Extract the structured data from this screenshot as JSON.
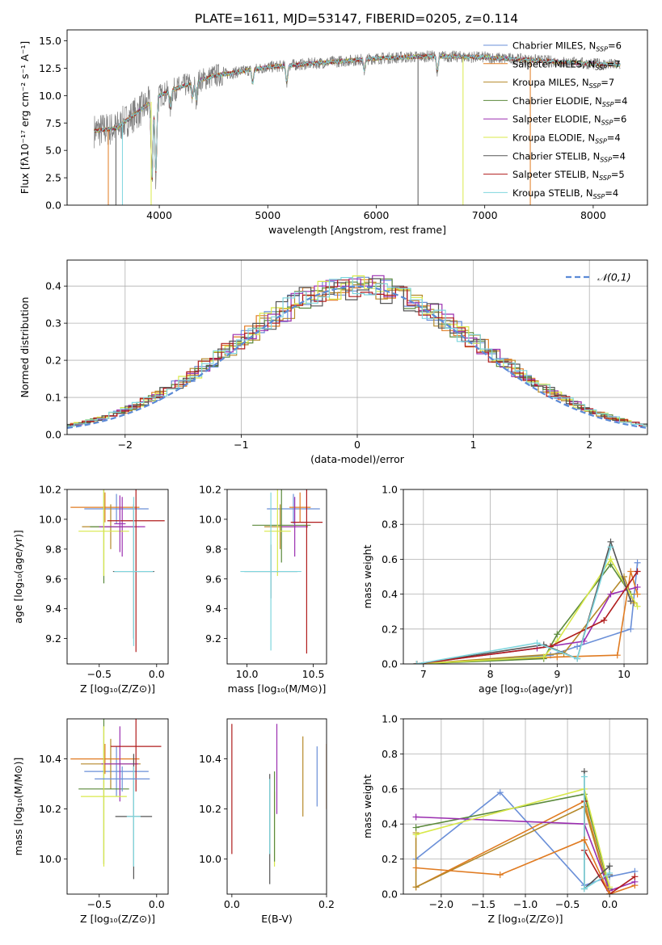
{
  "figure": {
    "title": "PLATE=1611, MJD=53147, FIBERID=0205, z=0.114",
    "series_colors": {
      "Chabrier MILES": "#6a8fd8",
      "Salpeter MILES": "#e07b21",
      "Kroupa MILES": "#b5892a",
      "Chabrier ELODIE": "#5b8a3c",
      "Salpeter ELODIE": "#9b2fb0",
      "Kroupa ELODIE": "#d8e84a",
      "Chabrier STELIB": "#555555",
      "Salpeter STELIB": "#b01c1c",
      "Kroupa STELIB": "#7fd6de"
    }
  },
  "chart_data": [
    {
      "id": "spectrum",
      "type": "line",
      "xlabel": "wavelength [Angstrom, rest frame]",
      "ylabel": "Flux [fλ10⁻¹⁷ erg cm⁻² s⁻¹ A⁻¹]",
      "xlim": [
        3150,
        8500
      ],
      "ylim": [
        0,
        16
      ],
      "xticks": [
        4000,
        5000,
        6000,
        7000,
        8000
      ],
      "yticks": [
        0.0,
        2.5,
        5.0,
        7.5,
        10.0,
        12.5,
        15.0
      ],
      "legend_position": "top-right",
      "legend": [
        {
          "label": "Chabrier MILES, N",
          "sub": "SSP",
          "tail": "=6"
        },
        {
          "label": "Salpeter MILES, N",
          "sub": "SSP",
          "tail": "=7"
        },
        {
          "label": "Kroupa MILES, N",
          "sub": "SSP",
          "tail": "=7"
        },
        {
          "label": "Chabrier ELODIE, N",
          "sub": "SSP",
          "tail": "=4"
        },
        {
          "label": "Salpeter ELODIE, N",
          "sub": "SSP",
          "tail": "=6"
        },
        {
          "label": "Kroupa ELODIE, N",
          "sub": "SSP",
          "tail": "=4"
        },
        {
          "label": "Chabrier STELIB, N",
          "sub": "SSP",
          "tail": "=4"
        },
        {
          "label": "Salpeter STELIB, N",
          "sub": "SSP",
          "tail": "=5"
        },
        {
          "label": "Kroupa STELIB, N",
          "sub": "SSP",
          "tail": "=4"
        }
      ],
      "data_range": [
        3400,
        8250
      ],
      "continuum": [
        [
          3400,
          6.8
        ],
        [
          3600,
          7.0
        ],
        [
          3800,
          8.5
        ],
        [
          4000,
          10.0
        ],
        [
          4200,
          10.8
        ],
        [
          4500,
          11.8
        ],
        [
          5000,
          12.6
        ],
        [
          5500,
          13.0
        ],
        [
          6000,
          13.4
        ],
        [
          6500,
          13.6
        ],
        [
          7000,
          13.5
        ],
        [
          7500,
          13.2
        ],
        [
          8000,
          12.9
        ],
        [
          8250,
          12.8
        ]
      ],
      "absorption": [
        [
          3933,
          0.25
        ],
        [
          3968,
          0.3
        ],
        [
          4102,
          0.85
        ],
        [
          4304,
          0.88
        ],
        [
          4340,
          0.85
        ],
        [
          4861,
          0.9
        ],
        [
          5175,
          0.88
        ],
        [
          5890,
          0.92
        ],
        [
          6563,
          0.9
        ]
      ],
      "drops": [
        {
          "x": 3530,
          "color": "Salpeter MILES"
        },
        {
          "x": 3600,
          "color": "Chabrier STELIB"
        },
        {
          "x": 3660,
          "color": "Kroupa STELIB"
        },
        {
          "x": 3925,
          "color": "Kroupa ELODIE"
        },
        {
          "x": 6385,
          "color": "Chabrier STELIB"
        },
        {
          "x": 6800,
          "color": "Kroupa ELODIE"
        },
        {
          "x": 7420,
          "color": "Salpeter MILES"
        }
      ]
    },
    {
      "id": "residuals",
      "type": "histogram",
      "xlabel": "(data-model)/error",
      "ylabel": "Normed distribution",
      "xlim": [
        -2.5,
        2.5
      ],
      "ylim": [
        0,
        0.47
      ],
      "xticks": [
        -2,
        -1,
        0,
        1,
        2
      ],
      "yticks": [
        0.0,
        0.1,
        0.2,
        0.3,
        0.4
      ],
      "grid": true,
      "bin_width": 0.1,
      "legend": "𝒩(0,1)",
      "legend_position": "top-right",
      "gaussian_color": "#5b8ad6"
    },
    {
      "id": "age_vs_Z",
      "type": "errorbar",
      "xlabel": "Z [log₁₀(Z/Z⊙)]",
      "ylabel": "age  [log₁₀(age/yr)]",
      "xlim": [
        -0.78,
        0.1
      ],
      "ylim": [
        9.03,
        10.2
      ],
      "xticks": [
        -0.5,
        0.0
      ],
      "yticks": [
        9.2,
        9.4,
        9.6,
        9.8,
        10.0,
        10.2
      ],
      "points": [
        {
          "s": "Chabrier MILES",
          "x": -0.35,
          "xe": 0.28,
          "y": 10.07,
          "ye": 0.1
        },
        {
          "s": "Salpeter MILES",
          "x": -0.45,
          "xe": 0.3,
          "y": 10.08,
          "ye": 0.1
        },
        {
          "s": "Kroupa MILES",
          "x": -0.4,
          "xe": 0.25,
          "y": 9.95,
          "ye": 0.15
        },
        {
          "s": "Chabrier ELODIE",
          "x": -0.46,
          "xe": 0.12,
          "y": 9.95,
          "ye": 0.38
        },
        {
          "s": "Salpeter ELODIE",
          "x": -0.3,
          "xe": 0.2,
          "y": 9.95,
          "ye": 0.2
        },
        {
          "s": "Kroupa ELODIE",
          "x": -0.46,
          "xe": 0.22,
          "y": 9.92,
          "ye": 0.3
        },
        {
          "s": "Chabrier STELIB",
          "x": -0.2,
          "xe": 0.18,
          "y": 9.65,
          "ye": 0.45
        },
        {
          "s": "Salpeter STELIB",
          "x": -0.18,
          "xe": 0.25,
          "y": 9.99,
          "ye": 0.88
        },
        {
          "s": "Kroupa STELIB",
          "x": -0.2,
          "xe": 0.17,
          "y": 9.65,
          "ye": 0.5
        },
        {
          "s": "Salpeter ELODIE",
          "x": -0.32,
          "xe": 0.05,
          "y": 9.97,
          "ye": 0.19
        }
      ]
    },
    {
      "id": "age_vs_mass",
      "type": "errorbar",
      "xlabel": "mass [log₁₀(M/M⊙)]",
      "ylabel": "",
      "xlim": [
        9.85,
        10.6
      ],
      "ylim": [
        9.03,
        10.2
      ],
      "xticks": [
        10.0,
        10.5
      ],
      "yticks": [
        9.2,
        9.4,
        9.6,
        9.8,
        10.0,
        10.2
      ],
      "points": [
        {
          "s": "Chabrier MILES",
          "x": 10.35,
          "xe": 0.2,
          "y": 10.07,
          "ye": 0.1
        },
        {
          "s": "Salpeter MILES",
          "x": 10.4,
          "xe": 0.08,
          "y": 10.08,
          "ye": 0.1
        },
        {
          "s": "Kroupa MILES",
          "x": 10.25,
          "xe": 0.12,
          "y": 9.95,
          "ye": 0.15
        },
        {
          "s": "Chabrier ELODIE",
          "x": 10.26,
          "xe": 0.22,
          "y": 9.96,
          "ye": 0.25
        },
        {
          "s": "Salpeter ELODIE",
          "x": 10.36,
          "xe": 0.1,
          "y": 9.95,
          "ye": 0.2
        },
        {
          "s": "Kroupa ELODIE",
          "x": 10.23,
          "xe": 0.1,
          "y": 9.92,
          "ye": 0.3
        },
        {
          "s": "Chabrier STELIB",
          "x": 10.18,
          "xe": 0.2,
          "y": 9.65,
          "ye": 0.18
        },
        {
          "s": "Salpeter STELIB",
          "x": 10.45,
          "xe": 0.12,
          "y": 9.98,
          "ye": 0.88
        },
        {
          "s": "Kroupa STELIB",
          "x": 10.18,
          "xe": 0.23,
          "y": 9.65,
          "ye": 0.53
        }
      ]
    },
    {
      "id": "weight_vs_age",
      "type": "line",
      "xlabel": "age  [log₁₀(age/yr)]",
      "ylabel": "mass weight",
      "xlim": [
        6.7,
        10.35
      ],
      "ylim": [
        0,
        1
      ],
      "xticks": [
        7,
        8,
        9,
        10
      ],
      "yticks": [
        0.0,
        0.2,
        0.4,
        0.6,
        0.8,
        1.0
      ],
      "grid": true,
      "series": [
        {
          "s": "Chabrier MILES",
          "x": [
            6.9,
            8.9,
            9.3,
            10.1,
            10.2
          ],
          "y": [
            0.0,
            0.05,
            0.1,
            0.2,
            0.58
          ]
        },
        {
          "s": "Salpeter MILES",
          "x": [
            6.9,
            9.0,
            9.9,
            10.1,
            10.2
          ],
          "y": [
            0.0,
            0.04,
            0.05,
            0.53,
            0.4
          ]
        },
        {
          "s": "Kroupa MILES",
          "x": [
            6.9,
            9.1,
            10.0,
            10.15
          ],
          "y": [
            0.0,
            0.06,
            0.5,
            0.35
          ]
        },
        {
          "s": "Chabrier ELODIE",
          "x": [
            6.9,
            8.8,
            9.0,
            9.8,
            10.1
          ],
          "y": [
            0.0,
            0.03,
            0.17,
            0.57,
            0.4
          ]
        },
        {
          "s": "Salpeter ELODIE",
          "x": [
            6.9,
            8.7,
            9.4,
            9.8,
            10.2
          ],
          "y": [
            0.0,
            0.09,
            0.13,
            0.4,
            0.44
          ]
        },
        {
          "s": "Kroupa ELODIE",
          "x": [
            6.9,
            8.8,
            9.0,
            9.8,
            10.2
          ],
          "y": [
            0.0,
            0.04,
            0.13,
            0.6,
            0.33
          ]
        },
        {
          "s": "Chabrier STELIB",
          "x": [
            6.9,
            8.8,
            9.3,
            9.8,
            10.1
          ],
          "y": [
            0.0,
            0.11,
            0.03,
            0.7,
            0.36
          ]
        },
        {
          "s": "Salpeter STELIB",
          "x": [
            6.9,
            8.9,
            9.7,
            10.2
          ],
          "y": [
            0.0,
            0.1,
            0.25,
            0.53
          ]
        },
        {
          "s": "Kroupa STELIB",
          "x": [
            6.9,
            8.7,
            9.3,
            9.8
          ],
          "y": [
            0.0,
            0.12,
            0.03,
            0.67
          ]
        }
      ]
    },
    {
      "id": "mass_vs_Z",
      "type": "errorbar",
      "xlabel": "Z [log₁₀(Z/Z⊙)]",
      "ylabel": "mass [log₁₀(M/M⊙)]",
      "xlim": [
        -0.78,
        0.1
      ],
      "ylim": [
        9.86,
        10.56
      ],
      "xticks": [
        -0.5,
        0.0
      ],
      "yticks": [
        10.0,
        10.2,
        10.4
      ],
      "points": [
        {
          "s": "Chabrier MILES",
          "x": -0.35,
          "xe": 0.28,
          "y": 10.35,
          "ye": 0.1
        },
        {
          "s": "Salpeter MILES",
          "x": -0.45,
          "xe": 0.3,
          "y": 10.4,
          "ye": 0.06
        },
        {
          "s": "Kroupa MILES",
          "x": -0.4,
          "xe": 0.26,
          "y": 10.38,
          "ye": 0.1
        },
        {
          "s": "Chabrier ELODIE",
          "x": -0.46,
          "xe": 0.22,
          "y": 10.28,
          "ye": 0.3
        },
        {
          "s": "Salpeter ELODIE",
          "x": -0.32,
          "xe": 0.16,
          "y": 10.38,
          "ye": 0.15
        },
        {
          "s": "Kroupa ELODIE",
          "x": -0.46,
          "xe": 0.2,
          "y": 10.25,
          "ye": 0.28
        },
        {
          "s": "Chabrier STELIB",
          "x": -0.2,
          "xe": 0.16,
          "y": 10.17,
          "ye": 0.25
        },
        {
          "s": "Salpeter STELIB",
          "x": -0.18,
          "xe": 0.22,
          "y": 10.45,
          "ye": 0.18
        },
        {
          "s": "Kroupa STELIB",
          "x": -0.2,
          "xe": 0.06,
          "y": 10.17,
          "ye": 0.2
        },
        {
          "s": "Chabrier MILES",
          "x": -0.3,
          "xe": 0.24,
          "y": 10.32,
          "ye": 0.05
        }
      ]
    },
    {
      "id": "mass_vs_ebv",
      "type": "errorbar",
      "xlabel": "E(B-V)",
      "ylabel": "",
      "xlim": [
        -0.01,
        0.2
      ],
      "ylim": [
        9.86,
        10.56
      ],
      "xticks": [
        0.0,
        0.2
      ],
      "yticks": [
        10.0,
        10.2,
        10.4
      ],
      "points": [
        {
          "s": "Salpeter STELIB",
          "x": 0.0,
          "xe": 0,
          "y": 10.28,
          "ye": 0.26
        },
        {
          "s": "Chabrier STELIB",
          "x": 0.08,
          "xe": 0,
          "y": 10.12,
          "ye": 0.22
        },
        {
          "s": "Kroupa STELIB",
          "x": 0.08,
          "xe": 0,
          "y": 10.17,
          "ye": 0.15
        },
        {
          "s": "Kroupa ELODIE",
          "x": 0.09,
          "xe": 0,
          "y": 10.12,
          "ye": 0.15
        },
        {
          "s": "Chabrier ELODIE",
          "x": 0.09,
          "xe": 0,
          "y": 10.17,
          "ye": 0.18
        },
        {
          "s": "Salpeter ELODIE",
          "x": 0.095,
          "xe": 0,
          "y": 10.36,
          "ye": 0.18
        },
        {
          "s": "Chabrier MILES",
          "x": 0.18,
          "xe": 0,
          "y": 10.33,
          "ye": 0.12
        },
        {
          "s": "Salpeter MILES",
          "x": 0.2,
          "xe": 0,
          "y": 10.33,
          "ye": 0.13
        },
        {
          "s": "Kroupa MILES",
          "x": 0.15,
          "xe": 0,
          "y": 10.33,
          "ye": 0.16
        }
      ]
    },
    {
      "id": "weight_vs_Z",
      "type": "line",
      "xlabel": "Z [log₁₀(Z/Z⊙)]",
      "ylabel": "mass weight",
      "xlim": [
        -2.45,
        0.45
      ],
      "ylim": [
        0,
        1
      ],
      "xticks": [
        -2.0,
        -1.5,
        -1.0,
        -0.5,
        0.0
      ],
      "yticks": [
        0.0,
        0.2,
        0.4,
        0.6,
        0.8,
        1.0
      ],
      "grid": true,
      "series": [
        {
          "s": "Chabrier MILES",
          "x": [
            -2.3,
            -1.3,
            -0.3,
            0.0,
            0.3
          ],
          "y": [
            0.2,
            0.58,
            0.05,
            0.1,
            0.13
          ]
        },
        {
          "s": "Salpeter MILES",
          "x": [
            -2.3,
            -0.3,
            0.0,
            0.3
          ],
          "y": [
            0.04,
            0.53,
            0.0,
            0.05
          ]
        },
        {
          "s": "Kroupa MILES",
          "x": [
            -2.3,
            -2.3,
            -0.3,
            0.0
          ],
          "y": [
            0.35,
            0.04,
            0.5,
            0.0
          ]
        },
        {
          "s": "Chabrier ELODIE",
          "x": [
            -2.3,
            -0.3,
            0.0
          ],
          "y": [
            0.38,
            0.57,
            0.03
          ]
        },
        {
          "s": "Salpeter ELODIE",
          "x": [
            -2.3,
            -0.3,
            0.0,
            0.3
          ],
          "y": [
            0.44,
            0.4,
            0.02,
            0.07
          ]
        },
        {
          "s": "Kroupa ELODIE",
          "x": [
            -2.3,
            -0.3,
            0.0
          ],
          "y": [
            0.34,
            0.6,
            0.04
          ]
        },
        {
          "s": "Chabrier STELIB",
          "x": [
            -0.3,
            -0.3,
            0.0,
            0.0
          ],
          "y": [
            0.7,
            0.03,
            0.16,
            0.11
          ]
        },
        {
          "s": "Salpeter STELIB",
          "x": [
            -0.3,
            -0.3,
            0.0,
            0.3
          ],
          "y": [
            0.53,
            0.25,
            0.0,
            0.1
          ]
        },
        {
          "s": "Kroupa STELIB",
          "x": [
            -0.3,
            -0.3,
            0.0
          ],
          "y": [
            0.67,
            0.03,
            0.12
          ]
        },
        {
          "s": "Salpeter MILES",
          "x": [
            -2.3,
            -1.3,
            -0.3,
            0.0
          ],
          "y": [
            0.15,
            0.11,
            0.31,
            0.0
          ]
        }
      ]
    }
  ]
}
